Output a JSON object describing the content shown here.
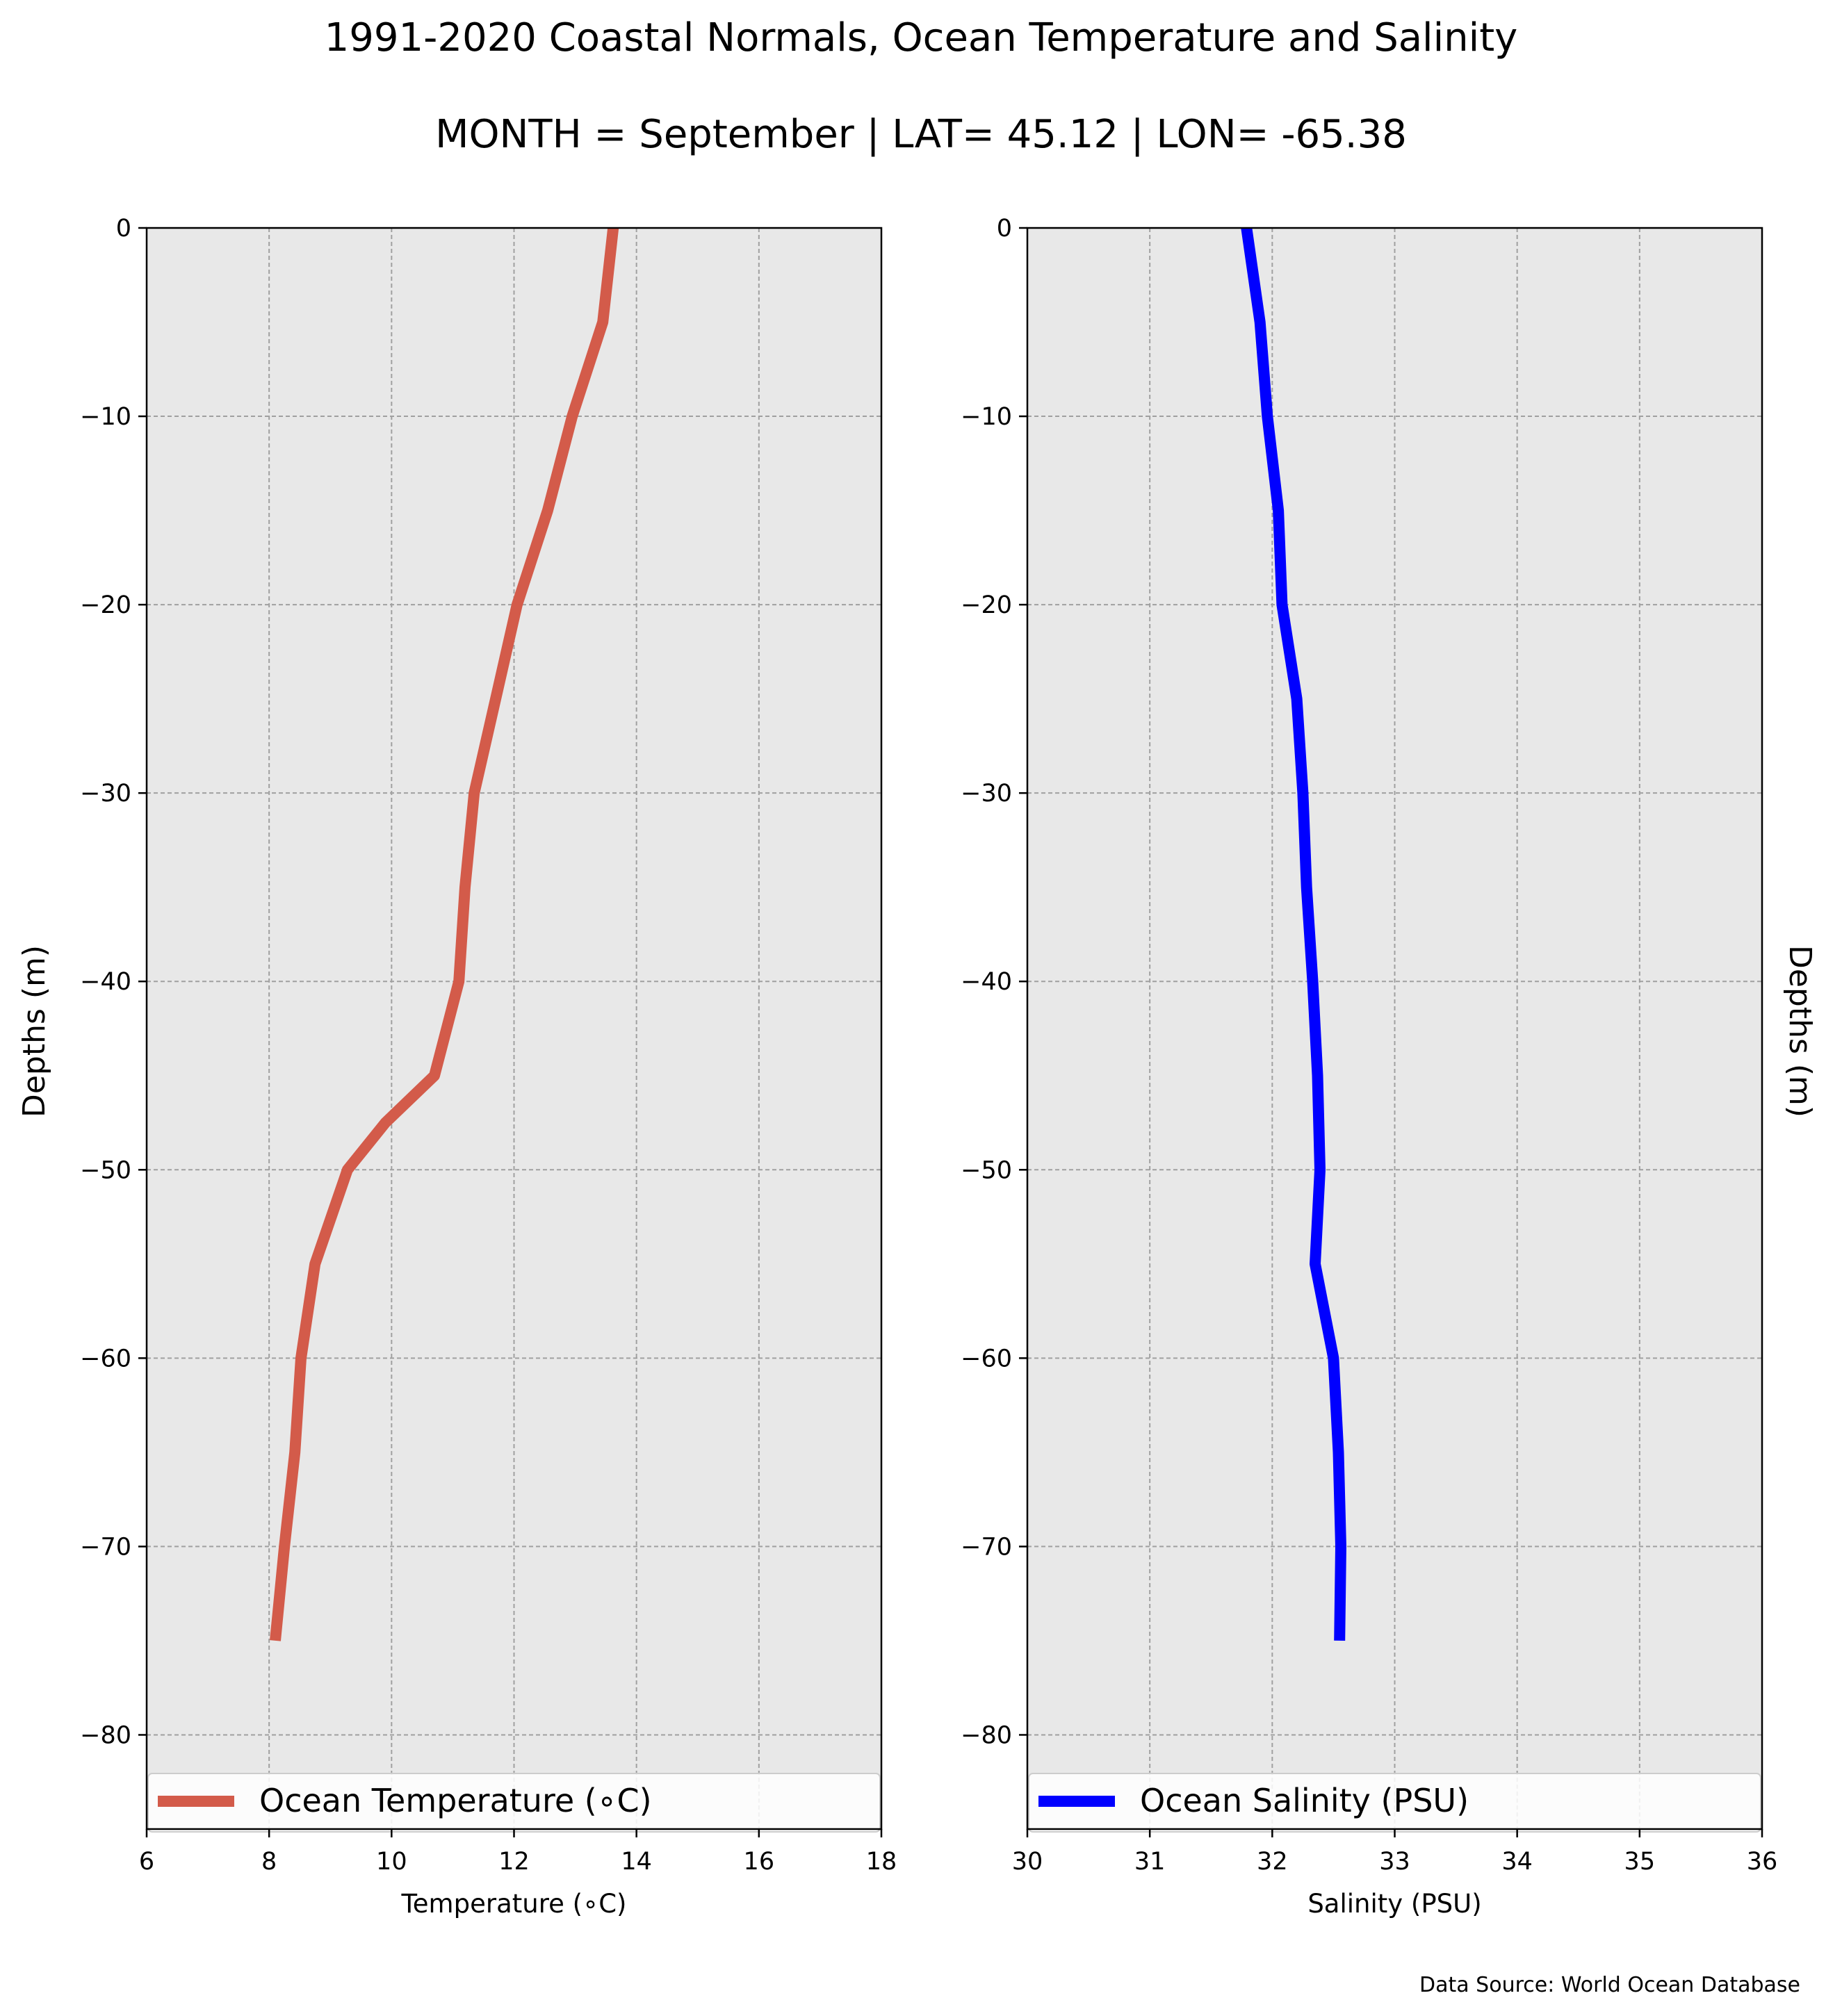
{
  "figure": {
    "title_line1": "1991-2020 Coastal Normals, Ocean Temperature and Salinity",
    "title_line2": "MONTH = September | LAT= 45.12 | LON= -65.38",
    "footer": "Data Source: World Ocean Database"
  },
  "chart_data": [
    {
      "type": "line",
      "xlabel": "Temperature ($^\\circ$C)",
      "xlabel_display": "Temperature (∘C)",
      "ylabel": "Depths (m)",
      "xlim": [
        6,
        18
      ],
      "ylim": [
        -85,
        0
      ],
      "xticks": [
        6,
        8,
        10,
        12,
        14,
        16,
        18
      ],
      "yticks": [
        0,
        -10,
        -20,
        -30,
        -40,
        -50,
        -60,
        -70,
        -80
      ],
      "ytick_labels": [
        "0",
        "−10",
        "−20",
        "−30",
        "−40",
        "−50",
        "−60",
        "−70",
        "−80"
      ],
      "grid": true,
      "background": "#e8e8e8",
      "legend_position": "bottom",
      "series": [
        {
          "name": "Ocean Temperature (∘C)",
          "color": "#d35b4a",
          "x": [
            13.62,
            13.45,
            12.95,
            12.55,
            12.05,
            11.7,
            11.35,
            11.2,
            11.1,
            10.7,
            9.9,
            9.28,
            8.75,
            8.52,
            8.42,
            8.25,
            8.1
          ],
          "y": [
            0,
            -5,
            -10,
            -15,
            -20,
            -25,
            -30,
            -35,
            -40,
            -45,
            -47.5,
            -50,
            -55,
            -60,
            -65,
            -70,
            -75
          ]
        }
      ]
    },
    {
      "type": "line",
      "xlabel": "Salinity (PSU)",
      "ylabel": "Depths (m)",
      "xlim": [
        30,
        36
      ],
      "ylim": [
        -85,
        0
      ],
      "xticks": [
        30,
        31,
        32,
        33,
        34,
        35,
        36
      ],
      "yticks": [
        0,
        -10,
        -20,
        -30,
        -40,
        -50,
        -60,
        -70,
        -80
      ],
      "ytick_labels": [
        "0",
        "−10",
        "−20",
        "−30",
        "−40",
        "−50",
        "−60",
        "−70",
        "−80"
      ],
      "grid": true,
      "background": "#e8e8e8",
      "legend_position": "bottom",
      "series": [
        {
          "name": "Ocean Salinity (PSU)",
          "color": "#0000ff",
          "x": [
            31.79,
            31.9,
            31.96,
            32.05,
            32.08,
            32.2,
            32.25,
            32.28,
            32.33,
            32.37,
            32.39,
            32.35,
            32.5,
            32.54,
            32.56,
            32.55
          ],
          "y": [
            0,
            -5,
            -10,
            -15,
            -20,
            -25,
            -30,
            -35,
            -40,
            -45,
            -50,
            -55,
            -60,
            -65,
            -70,
            -75
          ]
        }
      ]
    }
  ]
}
